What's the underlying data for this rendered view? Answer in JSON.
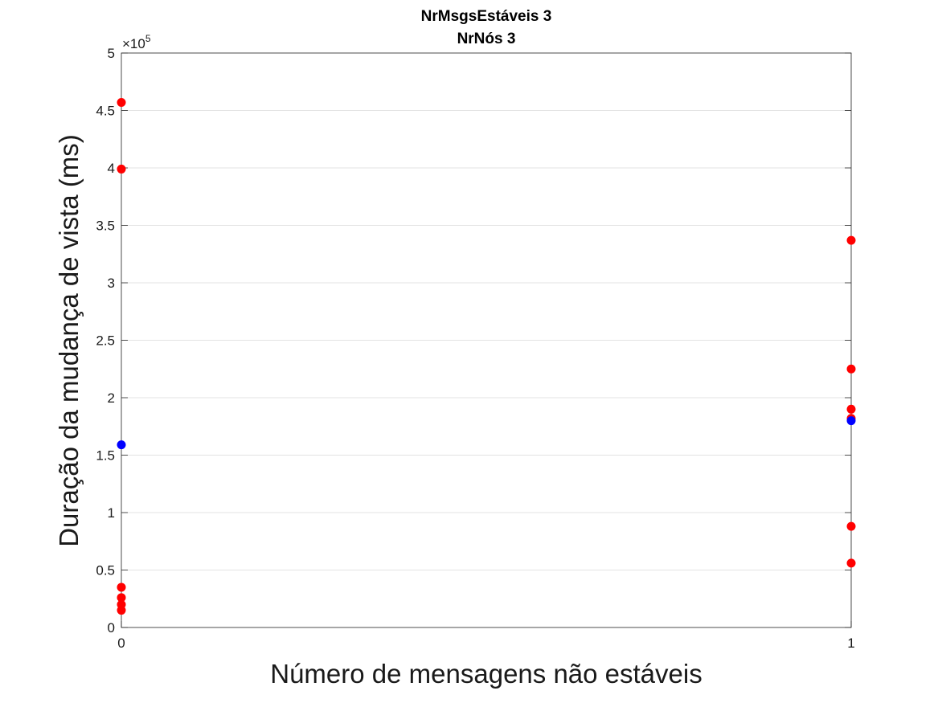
{
  "chart_data": {
    "type": "scatter",
    "title": [
      "NrMsgsEstáveis 3",
      "NrNós 3"
    ],
    "xlabel": "Número de mensagens não estáveis",
    "ylabel": "Duração da mudança de vista (ms)",
    "xlim": [
      0,
      1
    ],
    "ylim": [
      0,
      500000
    ],
    "x_ticks": [
      0,
      1
    ],
    "x_tick_labels": [
      "0",
      "1"
    ],
    "y_ticks": [
      0,
      50000,
      100000,
      150000,
      200000,
      250000,
      300000,
      350000,
      400000,
      450000,
      500000
    ],
    "y_tick_labels": [
      "0",
      "0.5",
      "1",
      "1.5",
      "2",
      "2.5",
      "3",
      "3.5",
      "4",
      "4.5",
      "5"
    ],
    "y_exponent_label": "×10",
    "y_exponent": "5",
    "grid": true,
    "series": [
      {
        "color": "#ff0000",
        "points": [
          {
            "x": 0,
            "y": 457000
          },
          {
            "x": 0,
            "y": 399000
          },
          {
            "x": 0,
            "y": 35000
          },
          {
            "x": 0,
            "y": 26000
          },
          {
            "x": 0,
            "y": 20000
          },
          {
            "x": 0,
            "y": 15000
          },
          {
            "x": 1,
            "y": 337000
          },
          {
            "x": 1,
            "y": 225000
          },
          {
            "x": 1,
            "y": 190000
          },
          {
            "x": 1,
            "y": 182000
          },
          {
            "x": 1,
            "y": 88000
          },
          {
            "x": 1,
            "y": 56000
          }
        ]
      },
      {
        "color": "#0000ff",
        "points": [
          {
            "x": 0,
            "y": 159000
          },
          {
            "x": 1,
            "y": 180000
          }
        ]
      }
    ]
  }
}
